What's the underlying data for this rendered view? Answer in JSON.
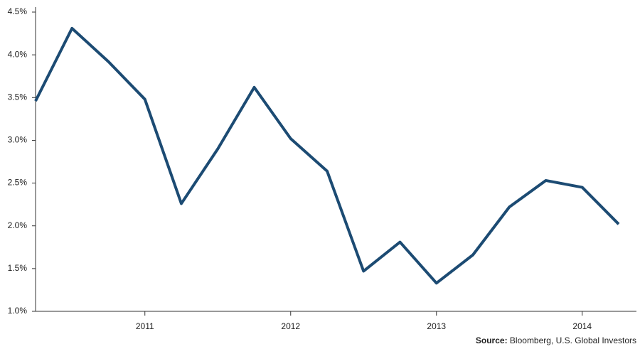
{
  "chart_data": {
    "type": "line",
    "categories": [
      null,
      null,
      null,
      "2011",
      null,
      null,
      null,
      "2012",
      null,
      null,
      null,
      "2013",
      null,
      null,
      null,
      "2014",
      null
    ],
    "series": [
      {
        "color": "#1c4b73",
        "values": [
          3.46,
          4.31,
          3.92,
          3.48,
          2.26,
          2.9,
          3.62,
          3.02,
          2.64,
          1.47,
          1.81,
          1.33,
          1.66,
          2.22,
          2.53,
          2.45,
          2.02
        ]
      }
    ],
    "ylim": [
      1.0,
      4.5
    ],
    "yticks": [
      {
        "value": 1.0,
        "label": "1.0%"
      },
      {
        "value": 1.5,
        "label": "1.5%"
      },
      {
        "value": 2.0,
        "label": "2.0%"
      },
      {
        "value": 2.5,
        "label": "2.5%"
      },
      {
        "value": 3.0,
        "label": "3.0%"
      },
      {
        "value": 3.5,
        "label": "3.5%"
      },
      {
        "value": 4.0,
        "label": "4.0%"
      },
      {
        "value": 4.5,
        "label": "4.5%"
      }
    ],
    "grid": false,
    "source_label": "Source:",
    "source": "Bloomberg, U.S. Global Investors"
  }
}
